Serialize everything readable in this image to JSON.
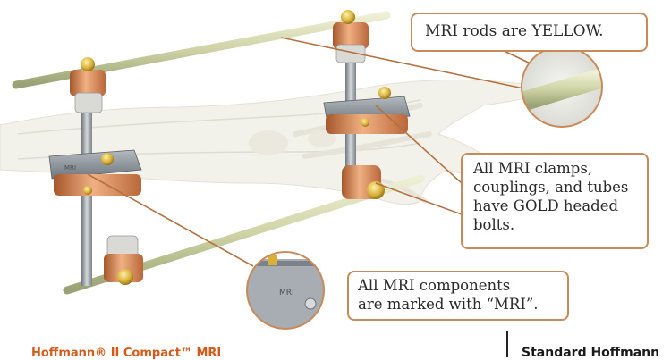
{
  "callouts": {
    "rods": "MRI rods are YELLOW.",
    "clamps": [
      "All MRI clamps,",
      "couplings, and tubes",
      "have GOLD headed",
      "bolts."
    ],
    "marked": [
      "All MRI components",
      "are marked with “MRI”."
    ]
  },
  "captions": {
    "left": "Hoffmann® II Compact™ MRI",
    "right": "Standard Hoffmann"
  },
  "magnifier_label": "MRI",
  "clamp_label": "MRI",
  "colors": {
    "rod": "#cdd3a4",
    "clamp_body": "#8f969e",
    "gold_component": "#d8894f",
    "bolt": "#d9b13a",
    "callout_border": "#c98a5a",
    "caption_accent": "#d45a1a"
  }
}
